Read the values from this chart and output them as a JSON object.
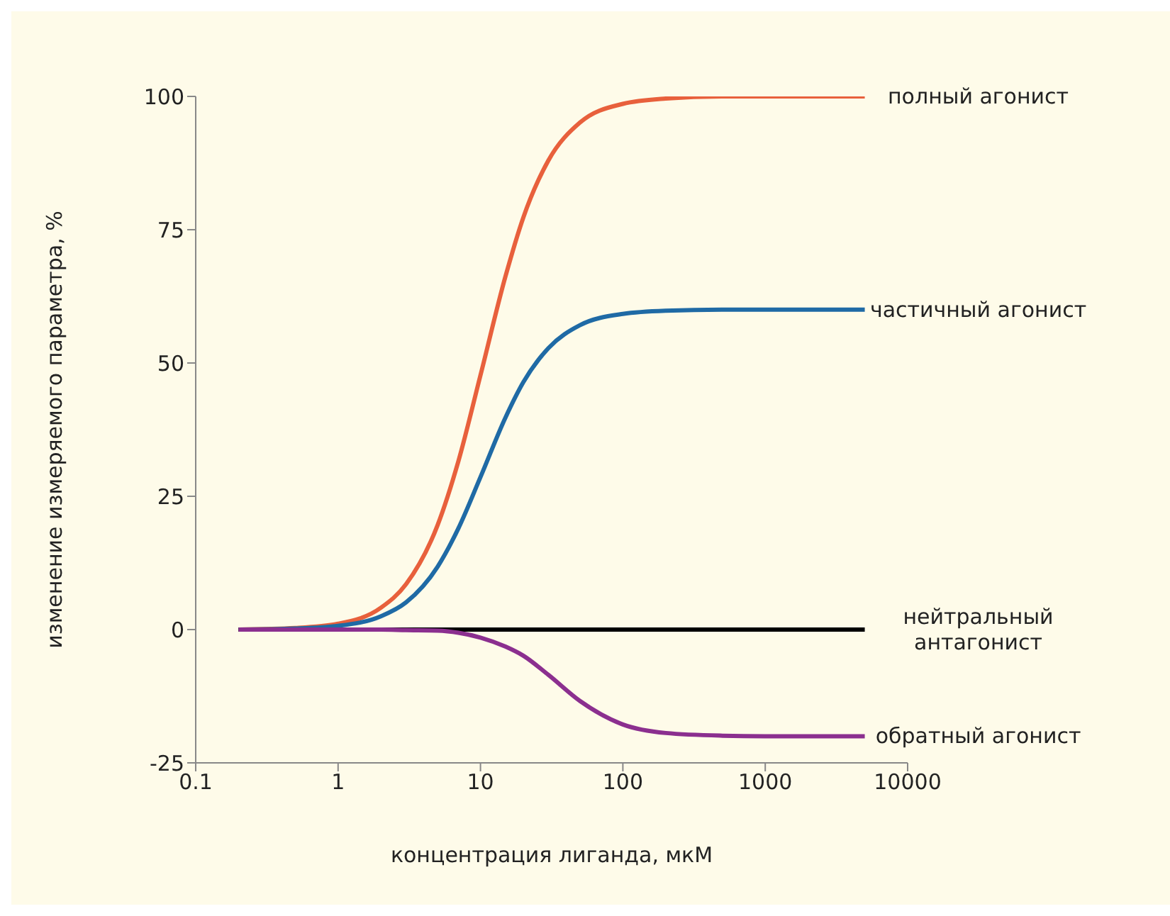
{
  "chart_data": {
    "type": "line",
    "xlabel": "концентрация лиганда, мкМ",
    "ylabel": "изменение измеряемого параметра, %",
    "log": "x",
    "xlim": [
      0.1,
      10000
    ],
    "xticks": [
      0.1,
      1,
      10,
      100,
      1000,
      10000
    ],
    "ylim": [
      -25,
      100
    ],
    "yticks": [
      -25,
      0,
      25,
      50,
      75,
      100
    ],
    "marker": "none",
    "line_style": "solid",
    "x": [
      0.2,
      0.5,
      1,
      2,
      3,
      5,
      7,
      10,
      15,
      20,
      30,
      50,
      100,
      200,
      500,
      1000,
      5000
    ],
    "series": [
      {
        "name": "полный агонист",
        "color": "#e8603c",
        "values": [
          0,
          0.3,
          1.1,
          4.1,
          8.5,
          19.6,
          31.6,
          47.7,
          66.3,
          77.3,
          88,
          95.1,
          98.6,
          99.6,
          100,
          100,
          100
        ]
      },
      {
        "name": "частичный агонист",
        "color": "#1f6aa5",
        "values": [
          0,
          0.2,
          0.7,
          2.5,
          5.1,
          11.8,
          19,
          28.6,
          39.8,
          46.4,
          52.8,
          57.1,
          59.2,
          59.8,
          60,
          60,
          60
        ]
      },
      {
        "name": "нейтральный\nантагонист",
        "color": "#000000",
        "values": [
          0,
          0,
          0,
          0,
          0,
          0,
          0,
          0,
          0,
          0,
          0,
          0,
          0,
          0,
          0,
          0,
          0
        ]
      },
      {
        "name": "обратный агонист",
        "color": "#8b2f8f",
        "values": [
          0,
          0,
          0,
          0,
          -0.1,
          -0.2,
          -0.6,
          -1.5,
          -3.2,
          -4.9,
          -8.5,
          -13.4,
          -17.8,
          -19.4,
          -19.9,
          -20,
          -20
        ]
      }
    ]
  }
}
